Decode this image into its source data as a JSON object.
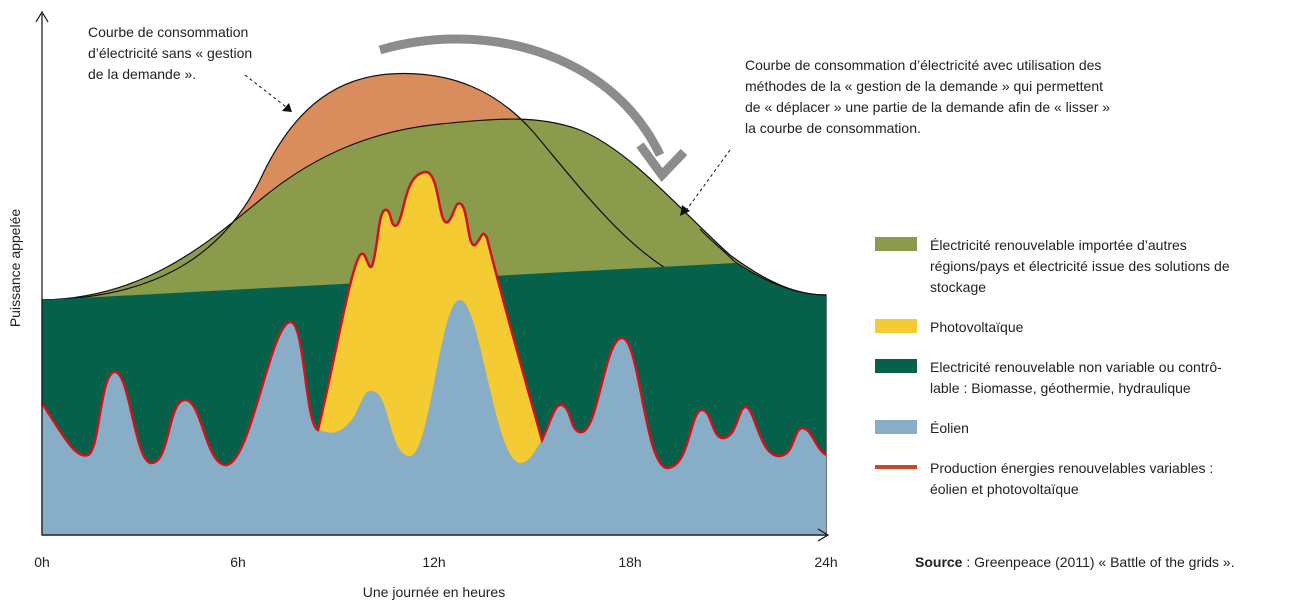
{
  "diagram": {
    "y_axis_label": "Puissance appelée",
    "x_axis_label": "Une journée en heures",
    "x_ticks": [
      "0h",
      "6h",
      "12h",
      "18h",
      "24h"
    ],
    "annotation_left": [
      "Courbe de consommation",
      "d’électricité sans « gestion",
      "de la demande »."
    ],
    "annotation_right": [
      "Courbe de consommation d’électricité avec utilisation des",
      "méthodes de la « gestion de la demande » qui permettent",
      "de « déplacer » une partie de la demande afin de « lisser »",
      "la courbe de consommation."
    ],
    "legend": [
      {
        "color": "#8a9c4b",
        "lines": [
          "Électricité renouvelable importée d’autres",
          "régions/pays et électricité issue des solutions de",
          "stockage"
        ]
      },
      {
        "color": "#f4cb32",
        "lines": [
          "Photovoltaïque"
        ]
      },
      {
        "color": "#06614a",
        "lines": [
          "Electricité renouvelable non variable ou contrô-",
          "lable : Biomasse, géothermie, hydraulique"
        ]
      },
      {
        "color": "#87aec6",
        "lines": [
          "Éolien"
        ]
      },
      {
        "color": "#c9482a",
        "lines": [
          "Production énergies renouvelables variables :",
          "éolien et photovoltaïque"
        ]
      }
    ],
    "source_bold": "Source",
    "source_text": " : Greenpeace (2011) « Battle of the grids »."
  }
}
